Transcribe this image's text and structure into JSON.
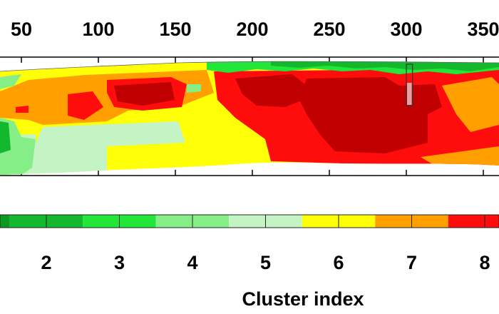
{
  "chart_data": {
    "type": "heatmap",
    "title": "",
    "x_ticks": [
      "50",
      "100",
      "150",
      "200",
      "250",
      "300",
      "350"
    ],
    "x_tick_values": [
      50,
      100,
      150,
      200,
      250,
      300,
      350
    ],
    "xlim": [
      37,
      360
    ],
    "colorbar": {
      "title": "Cluster index",
      "tick_labels": [
        "2",
        "3",
        "4",
        "5",
        "6",
        "7",
        "8"
      ],
      "classes": [
        1,
        2,
        3,
        4,
        5,
        6,
        7,
        8,
        9
      ],
      "colors": [
        "#0a9a22",
        "#14b82d",
        "#22e639",
        "#86ee86",
        "#c4f4c4",
        "#ffff08",
        "#ffa000",
        "#ff0c0c",
        "#c00000"
      ]
    },
    "highlight_marker": {
      "x_range": [
        300,
        304
      ]
    },
    "regions": [
      {
        "cluster": 1,
        "description": ""
      }
    ]
  }
}
